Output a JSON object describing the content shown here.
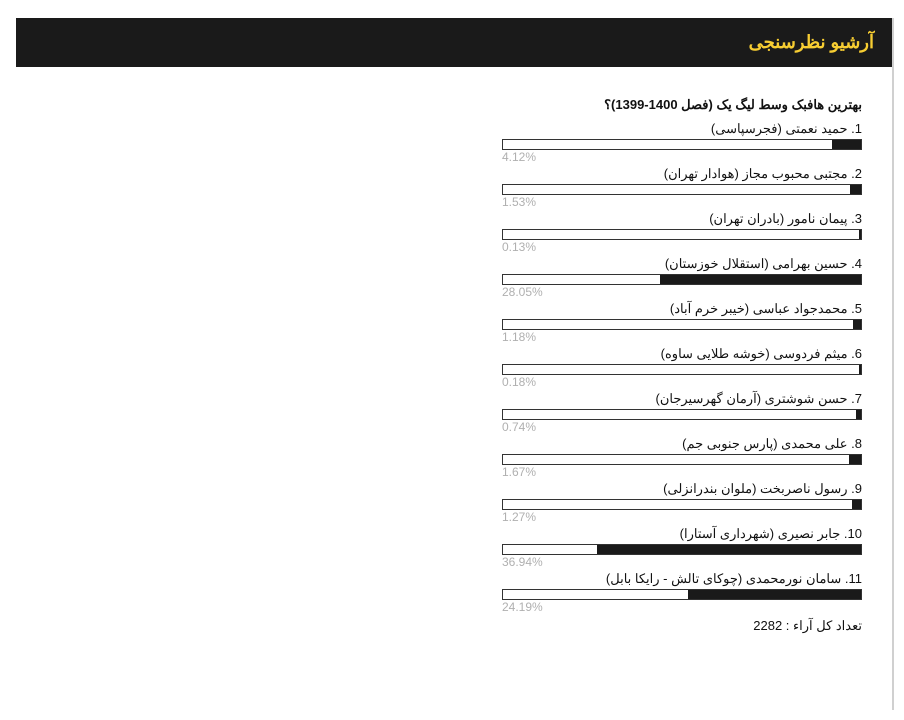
{
  "header": {
    "title": "آرشیو نظرسنجی"
  },
  "poll": {
    "question": "بهترین هافبک وسط لیگ یک (فصل 1400-1399)؟",
    "options": [
      {
        "num": "1",
        "label": "حمید نعمتی (فجرسپاسی)",
        "percent": 4.12,
        "display": "4.12%"
      },
      {
        "num": "2",
        "label": "مجتبی محبوب مجاز (هوادار تهران)",
        "percent": 1.53,
        "display": "1.53%"
      },
      {
        "num": "3",
        "label": "پیمان نامور (بادران تهران)",
        "percent": 0.13,
        "display": "0.13%"
      },
      {
        "num": "4",
        "label": "حسین بهرامی (استقلال خوزستان)",
        "percent": 28.05,
        "display": "28.05%"
      },
      {
        "num": "5",
        "label": "محمدجواد عباسی (خیبر خرم آباد)",
        "percent": 1.18,
        "display": "1.18%"
      },
      {
        "num": "6",
        "label": "میثم فردوسی (خوشه طلایی ساوه)",
        "percent": 0.18,
        "display": "0.18%"
      },
      {
        "num": "7",
        "label": "حسن شوشتری (آرمان گهرسیرجان)",
        "percent": 0.74,
        "display": "0.74%"
      },
      {
        "num": "8",
        "label": "علی محمدی (پارس جنوبی جم)",
        "percent": 1.67,
        "display": "1.67%"
      },
      {
        "num": "9",
        "label": "رسول ناصربخت (ملوان بندرانزلی)",
        "percent": 1.27,
        "display": "1.27%"
      },
      {
        "num": "10",
        "label": "جابر نصیری (شهرداری آستارا)",
        "percent": 36.94,
        "display": "36.94%"
      },
      {
        "num": "11",
        "label": "سامان نورمحمدی (چوکای تالش - رایکا بابل)",
        "percent": 24.19,
        "display": "24.19%"
      }
    ],
    "total_label": "تعداد کل آراء : 2282"
  },
  "style": {
    "header_bg": "#1a1a1a",
    "header_fg": "#f7cd32",
    "bar_fill": "#1a1a1a",
    "bar_border": "#333333",
    "percent_color": "#b0b0b0",
    "panel_border": "#d0d0d0",
    "max_percent": 50
  }
}
